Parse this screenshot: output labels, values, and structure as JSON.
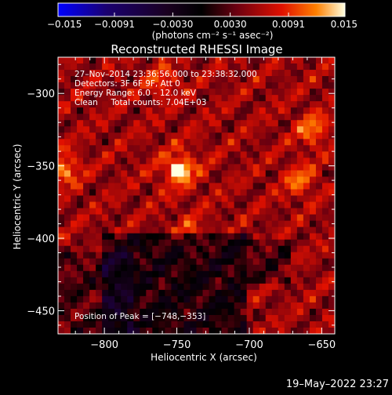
{
  "chart_data": {
    "type": "heatmap",
    "title": "Reconstructed RHESSI Image",
    "xlabel": "Heliocentric X (arcsec)",
    "ylabel": "Heliocentric Y (arcsec)",
    "xlim": [
      -832,
      -641
    ],
    "ylim": [
      -466,
      -275
    ],
    "x_ticks": [
      -800,
      -750,
      -700,
      -650
    ],
    "y_ticks": [
      -300,
      -350,
      -400,
      -450
    ],
    "x_tick_labels": [
      "−800",
      "−750",
      "−700",
      "−650"
    ],
    "y_tick_labels": [
      "−300",
      "−350",
      "−400",
      "−450"
    ],
    "colorbar": {
      "range": [
        -0.015,
        0.015
      ],
      "ticks": [
        -0.015,
        -0.0091,
        -0.003,
        0.003,
        0.0091,
        0.015
      ],
      "tick_labels": [
        "−0.015",
        "−0.0091",
        "−0.0030",
        "0.0030",
        "0.0091",
        "0.015"
      ],
      "unit_label": "(photons cm⁻² s⁻¹ asec⁻²)"
    },
    "annotations": {
      "time": "27–Nov–2014 23:36:56.000 to 23:38:32.000",
      "detectors": "Detectors: 3F 6F 9F, Att 0",
      "energy": "Energy Range: 6.0 – 12.0 keV",
      "clean": "Clean     Total counts: 7.04E+03",
      "peak": "Position of Peak = [−748,−353]"
    },
    "peak": {
      "x": -748,
      "y": -353,
      "value": 0.015
    },
    "secondary_sources": [
      {
        "x": -828,
        "y": -352,
        "value": 0.0065
      },
      {
        "x": -760,
        "y": -292,
        "value": 0.0045
      },
      {
        "x": -656,
        "y": -325,
        "value": 0.006
      },
      {
        "x": -665,
        "y": -360,
        "value": 0.0055
      },
      {
        "x": -740,
        "y": -397,
        "value": 0.004
      }
    ],
    "grid": false
  },
  "footer": {
    "timestamp": "19–May–2022 23:27"
  }
}
